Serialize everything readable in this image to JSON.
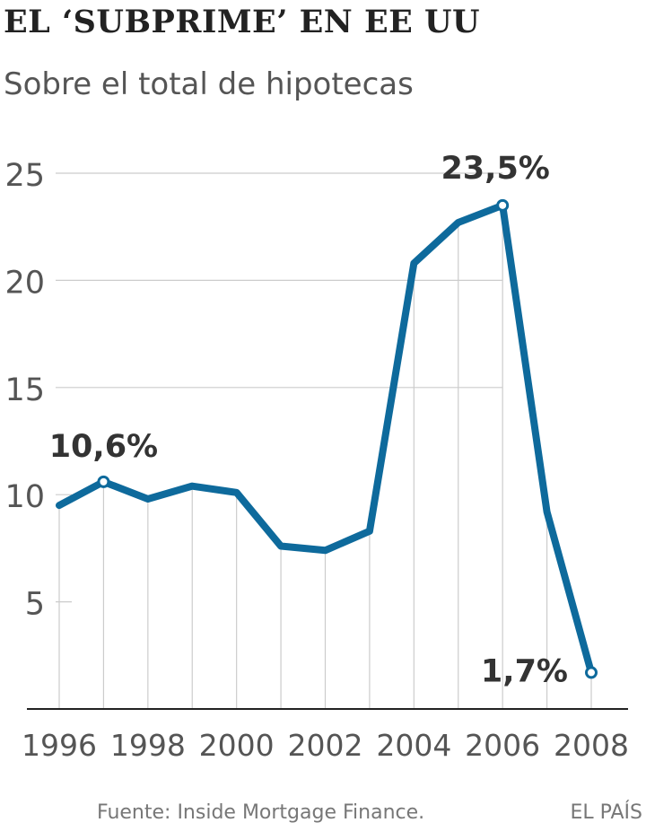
{
  "header": {
    "title": "EL ‘SUBPRIME’ EN EE UU",
    "subtitle": "Sobre el total de hipotecas"
  },
  "footer": {
    "source": "Fuente: Inside Mortgage Finance.",
    "brand": "EL PAÍS"
  },
  "colors": {
    "line": "#0E6A9C",
    "grid": "#cccccc",
    "axis": "#222222",
    "tick_text": "#555555",
    "annotation_text": "#333333"
  },
  "chart_data": {
    "type": "line",
    "title": "EL ‘SUBPRIME’ EN EE UU",
    "subtitle": "Sobre el total de hipotecas",
    "xlabel": "",
    "ylabel": "",
    "x": [
      1996,
      1997,
      1998,
      1999,
      2000,
      2001,
      2002,
      2003,
      2004,
      2005,
      2006,
      2007,
      2008
    ],
    "series": [
      {
        "values": [
          9.5,
          10.6,
          9.8,
          10.4,
          10.1,
          7.6,
          7.4,
          8.3,
          20.8,
          22.7,
          23.5,
          9.2,
          1.7
        ]
      }
    ],
    "xlim": [
      1996,
      2008
    ],
    "ylim": [
      0,
      25
    ],
    "x_ticks": [
      "1996",
      "1998",
      "2000",
      "2002",
      "2004",
      "2006",
      "2008"
    ],
    "y_ticks": [
      "5",
      "10",
      "15",
      "20",
      "25"
    ],
    "grid": "vertical lines at each year; horizontal lines at 15, 20, 25",
    "legend": "none",
    "annotations": [
      {
        "x": 1997,
        "y": 10.6,
        "label": "10,6%"
      },
      {
        "x": 2006,
        "y": 23.5,
        "label": "23,5%"
      },
      {
        "x": 2008,
        "y": 1.7,
        "label": "1,7%"
      }
    ]
  }
}
